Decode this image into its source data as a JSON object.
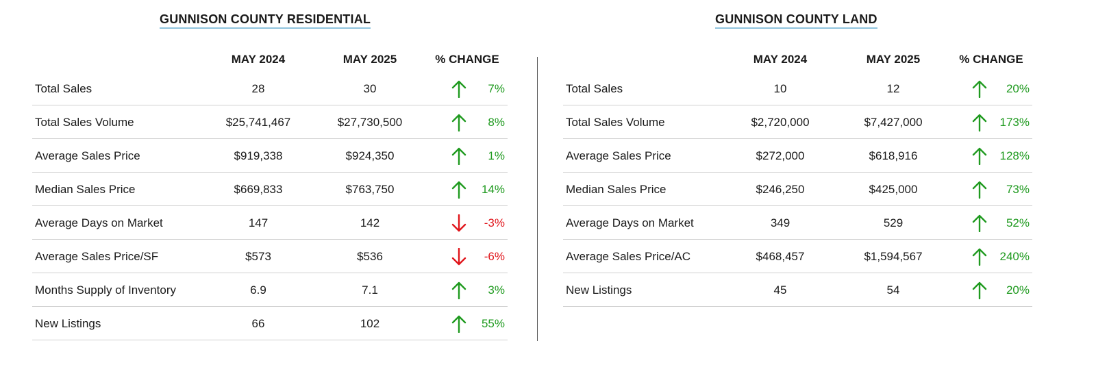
{
  "residential": {
    "title": "GUNNISON COUNTY RESIDENTIAL",
    "columns": {
      "prev": "MAY 2024",
      "curr": "MAY 2025",
      "change": "% CHANGE"
    },
    "rows": [
      {
        "label": "Total Sales",
        "prev": "28",
        "curr": "30",
        "direction": "up",
        "change": "7%"
      },
      {
        "label": "Total Sales Volume",
        "prev": "$25,741,467",
        "curr": "$27,730,500",
        "direction": "up",
        "change": "8%"
      },
      {
        "label": "Average Sales Price",
        "prev": "$919,338",
        "curr": "$924,350",
        "direction": "up",
        "change": "1%"
      },
      {
        "label": "Median Sales Price",
        "prev": "$669,833",
        "curr": "$763,750",
        "direction": "up",
        "change": "14%"
      },
      {
        "label": "Average Days on Market",
        "prev": "147",
        "curr": "142",
        "direction": "down",
        "change": "-3%"
      },
      {
        "label": "Average Sales Price/SF",
        "prev": "$573",
        "curr": "$536",
        "direction": "down",
        "change": "-6%"
      },
      {
        "label": "Months Supply of Inventory",
        "prev": "6.9",
        "curr": "7.1",
        "direction": "up",
        "change": "3%"
      },
      {
        "label": "New Listings",
        "prev": "66",
        "curr": "102",
        "direction": "up",
        "change": "55%"
      }
    ]
  },
  "land": {
    "title": "GUNNISON COUNTY LAND",
    "columns": {
      "prev": "MAY 2024",
      "curr": "MAY 2025",
      "change": "% CHANGE"
    },
    "rows": [
      {
        "label": "Total Sales",
        "prev": "10",
        "curr": "12",
        "direction": "up",
        "change": "20%"
      },
      {
        "label": "Total Sales Volume",
        "prev": "$2,720,000",
        "curr": "$7,427,000",
        "direction": "up",
        "change": "173%"
      },
      {
        "label": "Average Sales Price",
        "prev": "$272,000",
        "curr": "$618,916",
        "direction": "up",
        "change": "128%"
      },
      {
        "label": "Median Sales Price",
        "prev": "$246,250",
        "curr": "$425,000",
        "direction": "up",
        "change": "73%"
      },
      {
        "label": "Average Days on Market",
        "prev": "349",
        "curr": "529",
        "direction": "up",
        "change": "52%"
      },
      {
        "label": "Average Sales Price/AC",
        "prev": "$468,457",
        "curr": "$1,594,567",
        "direction": "up",
        "change": "240%"
      },
      {
        "label": "New Listings",
        "prev": "45",
        "curr": "54",
        "direction": "up",
        "change": "20%"
      }
    ]
  },
  "icons": {
    "up": "arrow-up-icon",
    "down": "arrow-down-icon"
  },
  "colors": {
    "up": "#1f9a1f",
    "down": "#e0151b",
    "title_underline": "#8fc3dd"
  }
}
